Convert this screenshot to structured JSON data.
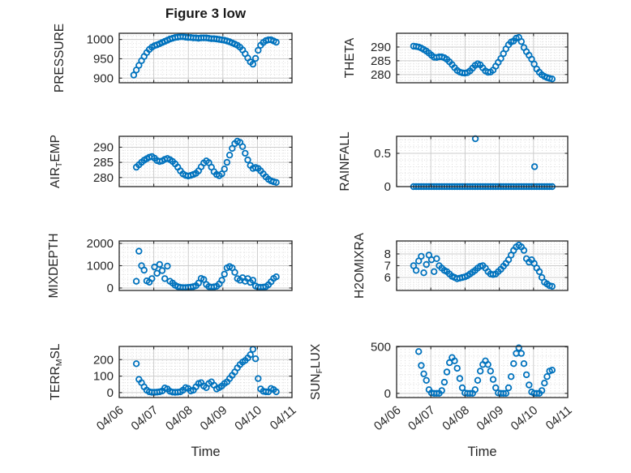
{
  "figure": {
    "title": "Figure 3 low",
    "xlabel": "Time",
    "background": "#ffffff",
    "marker_color": "#0072BD",
    "axis_color": "#262626",
    "grid_major_color": "#cccccc",
    "grid_minor_color": "#d4d4d4",
    "x_tick_labels": [
      "04/06",
      "04/07",
      "04/08",
      "04/09",
      "04/10",
      "04/11"
    ],
    "x_range_days": [
      0,
      5
    ]
  },
  "chart_data": [
    {
      "type": "scatter",
      "id": "pressure",
      "name": "PRESSURE",
      "label_parts": [
        {
          "t": "PRESSURE",
          "sub": false
        }
      ],
      "row": 0,
      "col": 0,
      "ylim": [
        888,
        1016
      ],
      "yticks": [
        900,
        950,
        1000
      ],
      "y_minor_step": 10,
      "x_minor_step": 0.125,
      "x_start": 0.42,
      "x_step": 0.075,
      "values": [
        908,
        921,
        933,
        945,
        956,
        966,
        974,
        980,
        984,
        986,
        989,
        992,
        995,
        998,
        1001,
        1003,
        1005,
        1006,
        1007,
        1007,
        1006,
        1005,
        1005,
        1004,
        1004,
        1003,
        1004,
        1004,
        1004,
        1003,
        1002,
        1002,
        1001,
        1000,
        999,
        998,
        996,
        994,
        991,
        988,
        985,
        980,
        973,
        963,
        952,
        942,
        936,
        951,
        972,
        985,
        992,
        997,
        999,
        999,
        996,
        993
      ],
      "extra_points": []
    },
    {
      "type": "scatter",
      "id": "theta",
      "name": "THETA",
      "label_parts": [
        {
          "t": "THETA",
          "sub": false
        }
      ],
      "row": 0,
      "col": 1,
      "ylim": [
        277,
        295
      ],
      "yticks": [
        280,
        285,
        290
      ],
      "y_minor_step": 1,
      "x_minor_step": 0.125,
      "x_start": 0.495,
      "x_step": 0.075,
      "values": [
        290.3,
        290.2,
        290,
        289.6,
        289.1,
        288.5,
        287.8,
        287,
        286.3,
        286.2,
        286.4,
        286.4,
        286.1,
        285.5,
        284.6,
        283.6,
        282.5,
        281.5,
        280.9,
        280.6,
        280.5,
        280.7,
        281.3,
        282.3,
        283.3,
        283.9,
        283.5,
        282.4,
        281.3,
        280.8,
        280.9,
        281.6,
        283,
        284.4,
        285.8,
        287.6,
        289.3,
        290.8,
        291.8,
        292.2,
        293.2,
        293.5,
        292,
        289.8,
        288.3,
        287,
        285.6,
        283.8,
        282,
        280.8,
        279.9,
        279.3,
        278.9,
        278.6,
        278.4
      ],
      "extra_points": []
    },
    {
      "type": "scatter",
      "id": "air-temp",
      "name": "AIR_TEMP",
      "label_parts": [
        {
          "t": "AIR",
          "sub": false
        },
        {
          "t": "T",
          "sub": true
        },
        {
          "t": "EMP",
          "sub": false
        }
      ],
      "row": 1,
      "col": 0,
      "ylim": [
        277,
        293.6
      ],
      "yticks": [
        280,
        285,
        290
      ],
      "y_minor_step": 1,
      "x_minor_step": 0.125,
      "x_start": 0.495,
      "x_step": 0.075,
      "values": [
        283.4,
        284.2,
        285,
        285.7,
        286.2,
        286.7,
        286.9,
        286.4,
        285.6,
        285.3,
        285.5,
        286,
        286.3,
        285.9,
        285.3,
        284.5,
        283.4,
        282.2,
        281.2,
        280.7,
        280.5,
        280.7,
        281,
        281.4,
        282.2,
        283.5,
        284.8,
        285.5,
        284.9,
        283.4,
        281.9,
        281,
        280.6,
        281.2,
        282.8,
        285,
        287.4,
        289.6,
        291.2,
        292,
        291.6,
        290.2,
        288,
        285.8,
        284,
        283,
        283.3,
        283,
        282.2,
        281.2,
        280.2,
        279.4,
        278.9,
        278.6,
        278.4
      ],
      "extra_points": []
    },
    {
      "type": "scatter",
      "id": "rainfall",
      "name": "RAINFALL",
      "label_parts": [
        {
          "t": "RAINFALL",
          "sub": false
        }
      ],
      "row": 1,
      "col": 1,
      "ylim": [
        0,
        0.756
      ],
      "yticks": [
        0,
        0.5
      ],
      "y_minor_step": 0.1,
      "x_minor_step": 0.125,
      "x_start": 0.495,
      "x_step": 0.075,
      "values": [
        0,
        0,
        0,
        0,
        0,
        0,
        0,
        0,
        0,
        0,
        0,
        0,
        0,
        0,
        0,
        0,
        0,
        0,
        0,
        0,
        0,
        0,
        0,
        0,
        0,
        0,
        0,
        0,
        0,
        0,
        0,
        0,
        0,
        0,
        0,
        0,
        0,
        0,
        0,
        0,
        0,
        0,
        0,
        0,
        0,
        0,
        0,
        0,
        0,
        0,
        0,
        0,
        0,
        0,
        0
      ],
      "extra_points": [
        {
          "x": 2.3,
          "y": 0.72
        },
        {
          "x": 4.03,
          "y": 0.3
        }
      ]
    },
    {
      "type": "scatter",
      "id": "mixdepth",
      "name": "MIXDEPTH",
      "label_parts": [
        {
          "t": "MIXDEPTH",
          "sub": false
        }
      ],
      "row": 2,
      "col": 0,
      "ylim": [
        -110,
        2110
      ],
      "yticks": [
        0,
        1000,
        2000
      ],
      "y_minor_step": 200,
      "x_minor_step": 0.125,
      "x_start": 0.495,
      "x_step": 0.075,
      "values": [
        300,
        1650,
        1000,
        800,
        320,
        260,
        420,
        940,
        660,
        1060,
        780,
        420,
        980,
        300,
        220,
        120,
        60,
        30,
        20,
        20,
        30,
        40,
        60,
        100,
        220,
        430,
        380,
        160,
        60,
        40,
        50,
        80,
        180,
        350,
        620,
        900,
        960,
        900,
        700,
        420,
        350,
        460,
        300,
        420,
        250,
        350,
        90,
        40,
        30,
        40,
        60,
        150,
        280,
        430,
        500
      ],
      "extra_points": []
    },
    {
      "type": "scatter",
      "id": "h2omixra",
      "name": "H2OMIXRA",
      "label_parts": [
        {
          "t": "H2OMIXRA",
          "sub": false
        }
      ],
      "row": 2,
      "col": 1,
      "ylim": [
        4.9,
        9.1
      ],
      "yticks": [
        6,
        7,
        8
      ],
      "y_minor_step": 0.2,
      "x_minor_step": 0.125,
      "x_start": 0.495,
      "x_step": 0.075,
      "values": [
        7,
        6.6,
        7.4,
        7.8,
        6.4,
        7.1,
        7.9,
        7.5,
        6.5,
        7.6,
        7,
        6.8,
        6.6,
        6.5,
        6.3,
        6.1,
        6,
        5.9,
        5.95,
        6,
        6.05,
        6.15,
        6.3,
        6.45,
        6.6,
        6.8,
        6.95,
        7,
        6.8,
        6.5,
        6.3,
        6.25,
        6.3,
        6.5,
        6.7,
        6.95,
        7.2,
        7.5,
        7.9,
        8.3,
        8.6,
        8.75,
        8.6,
        8.3,
        7.6,
        7.3,
        7.5,
        7.2,
        6.8,
        6.5,
        6,
        5.6,
        5.45,
        5.3,
        5.25
      ],
      "extra_points": []
    },
    {
      "type": "scatter",
      "id": "terr-msl",
      "name": "TERR_MSL",
      "label_parts": [
        {
          "t": "TERR",
          "sub": false
        },
        {
          "t": "M",
          "sub": true
        },
        {
          "t": "SL",
          "sub": false
        }
      ],
      "row": 3,
      "col": 0,
      "ylim": [
        -30,
        280
      ],
      "yticks": [
        0,
        100,
        200
      ],
      "y_minor_step": 20,
      "x_minor_step": 0.125,
      "x_start": 0.495,
      "x_step": 0.075,
      "values": [
        175,
        80,
        60,
        35,
        15,
        5,
        2,
        2,
        3,
        5,
        10,
        28,
        22,
        8,
        3,
        2,
        3,
        5,
        15,
        30,
        25,
        10,
        15,
        35,
        55,
        60,
        40,
        30,
        55,
        65,
        45,
        22,
        30,
        40,
        55,
        65,
        85,
        105,
        125,
        150,
        170,
        185,
        195,
        210,
        230,
        263,
        205,
        85,
        22,
        8,
        5,
        5,
        25,
        18,
        5
      ],
      "extra_points": []
    },
    {
      "type": "scatter",
      "id": "sun-flux",
      "name": "SUN_FLUX",
      "label_parts": [
        {
          "t": "SUN",
          "sub": false
        },
        {
          "t": "F",
          "sub": true
        },
        {
          "t": "LUX",
          "sub": false
        }
      ],
      "row": 3,
      "col": 1,
      "ylim": [
        -45,
        505
      ],
      "yticks": [
        0,
        500
      ],
      "y_minor_step": 100,
      "x_minor_step": 0.125,
      "x_start": 0.645,
      "x_step": 0.075,
      "values": [
        450,
        300,
        210,
        140,
        40,
        5,
        0,
        0,
        0,
        30,
        120,
        230,
        330,
        385,
        350,
        270,
        160,
        60,
        5,
        0,
        0,
        0,
        40,
        140,
        240,
        310,
        350,
        310,
        240,
        150,
        60,
        5,
        0,
        0,
        0,
        60,
        180,
        320,
        430,
        490,
        430,
        320,
        200,
        90,
        15,
        0,
        0,
        0,
        30,
        110,
        180,
        240,
        250
      ],
      "extra_points": []
    }
  ]
}
